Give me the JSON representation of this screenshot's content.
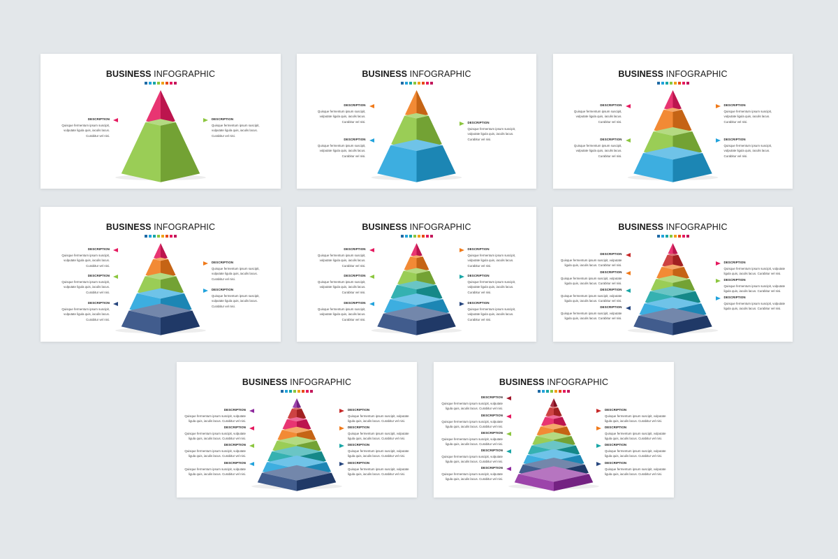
{
  "title_bold": "BUSINESS",
  "title_rest": " INFOGRAPHIC",
  "dot_colors": [
    "#1f6aa5",
    "#22a3dc",
    "#19a6a6",
    "#8cc63f",
    "#f0a21a",
    "#e64a19",
    "#e5195f",
    "#c2185b"
  ],
  "desc_label": "DESCRIPTION",
  "desc_lines": [
    "Quisque fermentum ipsum suscipit,",
    "vulputate ligula quis, iaculis lacus.",
    "Curabitur vel nisi."
  ],
  "desc_lines_wide": [
    "Quisque fermentum ipsum suscipit, vulputate",
    "ligula quis, iaculis lacus. Curabitur vel nisi."
  ],
  "colors": {
    "pink": "#e5195f",
    "orange": "#f07a1a",
    "green": "#8cc63f",
    "teal": "#19a6a6",
    "blue": "#22a3dc",
    "navy": "#27467e",
    "purple": "#8e2a9e",
    "red": "#c62828",
    "darkred": "#a0162a"
  },
  "slides": [
    {
      "layers": [
        "pink",
        "green"
      ]
    },
    {
      "layers": [
        "orange",
        "green",
        "blue"
      ]
    },
    {
      "layers": [
        "pink",
        "orange",
        "green",
        "blue"
      ]
    },
    {
      "layers": [
        "pink",
        "orange",
        "green",
        "blue",
        "navy"
      ]
    },
    {
      "layers": [
        "pink",
        "orange",
        "green",
        "teal",
        "blue",
        "navy"
      ]
    },
    {
      "layers": [
        "pink",
        "red",
        "orange",
        "green",
        "teal",
        "blue",
        "navy"
      ]
    },
    {
      "layers": [
        "purple",
        "red",
        "pink",
        "orange",
        "green",
        "teal",
        "blue",
        "navy"
      ]
    },
    {
      "layers": [
        "darkred",
        "red",
        "pink",
        "orange",
        "green",
        "teal",
        "blue",
        "navy",
        "purple"
      ]
    }
  ]
}
